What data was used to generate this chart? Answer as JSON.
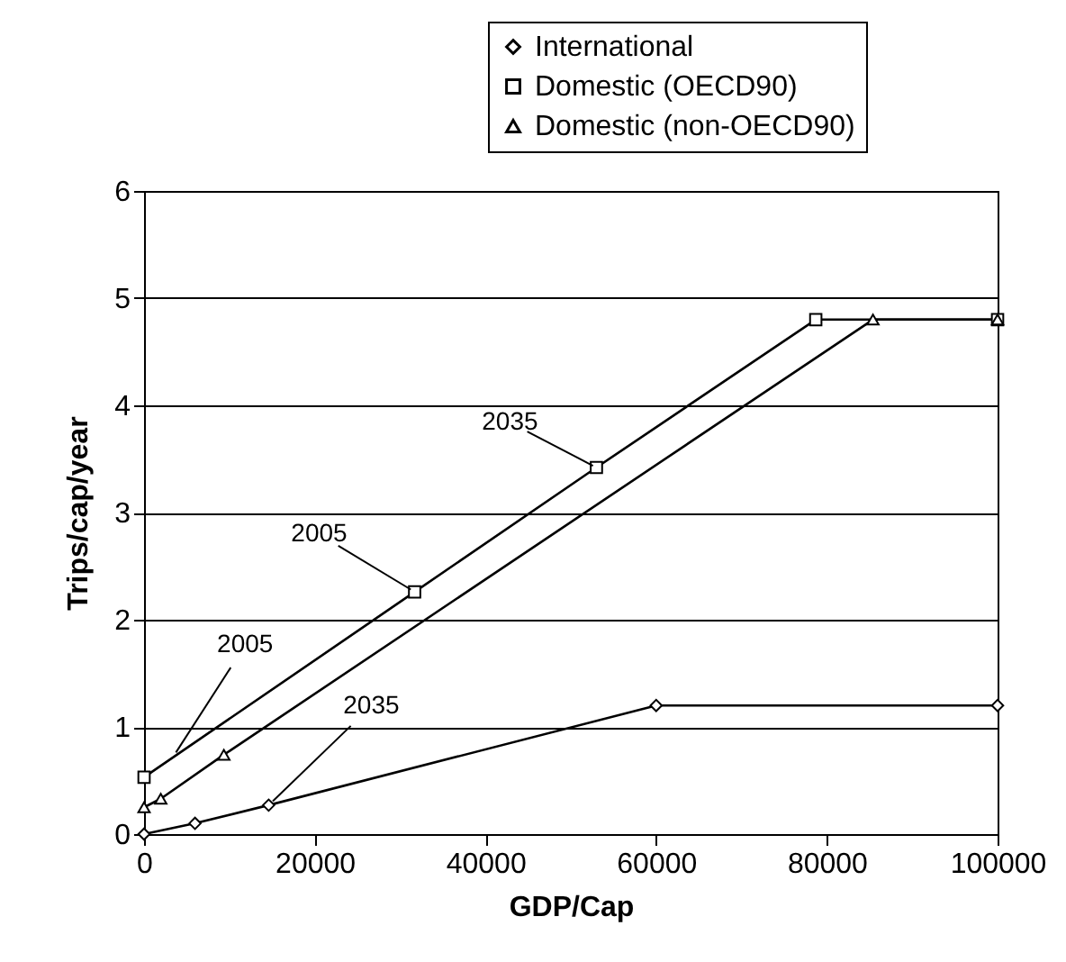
{
  "chart_data": {
    "type": "line",
    "xlabel": "GDP/Cap",
    "ylabel": "Trips/cap/year",
    "xlim": [
      0,
      100000
    ],
    "xticks": [
      0,
      20000,
      40000,
      60000,
      80000,
      100000
    ],
    "ylim": [
      0,
      6
    ],
    "yticks": [
      0,
      1,
      2,
      3,
      4,
      5,
      6
    ],
    "grid": "y",
    "legend": "top right",
    "line_style": "solid",
    "series": [
      {
        "name": "International",
        "color": "#000000",
        "marker": "diamond",
        "x": [
          0,
          5970,
          14600,
          60000,
          100000
        ],
        "values": [
          0,
          0.1,
          0.27,
          1.2,
          1.2
        ]
      },
      {
        "name": "Domestic (OECD90)",
        "color": "#000000",
        "marker": "square",
        "x": [
          0,
          31700,
          53000,
          78700,
          100000
        ],
        "values": [
          0.53,
          2.26,
          3.42,
          4.8,
          4.8
        ]
      },
      {
        "name": "Domestic (non-OECD90)",
        "color": "#000000",
        "marker": "triangle",
        "x": [
          0,
          1960,
          9350,
          85400,
          100000
        ],
        "values": [
          0.25,
          0.33,
          0.74,
          4.8,
          4.8
        ]
      }
    ],
    "annotations": [
      {
        "text": "2005",
        "x": 31700,
        "y": 2.26
      },
      {
        "text": "2035",
        "x": 53000,
        "y": 3.42
      },
      {
        "text": "2005",
        "x": 3400,
        "y": 0.72
      },
      {
        "text": "2035",
        "x": 14600,
        "y": 0.27
      }
    ]
  }
}
